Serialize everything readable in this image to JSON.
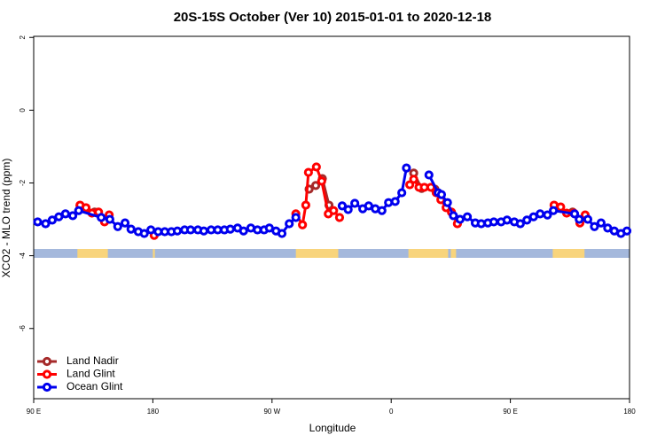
{
  "chart_data": {
    "type": "line",
    "title": "20S-15S October (Ver 10)   2015-01-01 to 2020-12-18",
    "x_label": "Longitude",
    "y_label": "XCO2 - MLO trend (ppm)",
    "xlim": [
      90,
      540
    ],
    "ylim": [
      -7.93,
      2.03
    ],
    "xticks": [
      {
        "value": 90,
        "label": "90 E"
      },
      180,
      {
        "value": 270,
        "label": "90 W"
      },
      {
        "value": 360,
        "label": "0"
      },
      {
        "value": 450,
        "label": "90 E"
      },
      {
        "value": 540,
        "label": "180"
      }
    ],
    "yticks": [
      2,
      0,
      -2,
      -4,
      -6
    ],
    "legend": "bottom-left",
    "land_bands": [
      [
        123,
        146
      ],
      [
        180,
        181.5
      ],
      [
        288,
        320
      ],
      [
        373,
        403
      ],
      [
        405,
        409
      ],
      [
        482,
        506
      ]
    ],
    "land_color": "#f8d47c",
    "ocean_color": "#a4b8dc",
    "series": [
      {
        "name": "Land Nadir",
        "color": "#a52a2a",
        "x": [
          125,
          129.5,
          136,
          143,
          null,
          298,
          303,
          308,
          313,
          null,
          377,
          383,
          393,
          null,
          497
        ],
        "values": [
          -2.63,
          -2.7,
          -2.8,
          -3.0,
          null,
          -2.17,
          -2.07,
          -1.88,
          -2.61,
          null,
          -1.73,
          -2.15,
          -2.17,
          null,
          -2.8
        ]
      },
      {
        "name": "Land Glint",
        "color": "#ff0000",
        "x": [
          125,
          129.5,
          134,
          139,
          143.5,
          147,
          null,
          181,
          null,
          288,
          293,
          295.5,
          297.5,
          303.5,
          307.5,
          312.5,
          316.5,
          321,
          null,
          374,
          377,
          381,
          385,
          390,
          394,
          397.5,
          401.5,
          405.5,
          410,
          null,
          483,
          488,
          492.5,
          498,
          502.5,
          506.5
        ],
        "values": [
          -2.61,
          -2.68,
          -2.83,
          -2.8,
          -3.07,
          -2.88,
          null,
          -3.44,
          null,
          -2.85,
          -3.15,
          -2.61,
          -1.71,
          -1.56,
          -1.95,
          -2.85,
          -2.76,
          -2.95,
          null,
          -2.05,
          -1.9,
          -2.12,
          -2.12,
          -2.12,
          -2.27,
          -2.46,
          -2.68,
          -2.8,
          -3.12,
          null,
          -2.61,
          -2.66,
          -2.83,
          -2.83,
          -3.1,
          -2.88
        ]
      },
      {
        "name": "Ocean Glint",
        "color": "#0000ee",
        "x": [
          93,
          99,
          104,
          109,
          114,
          119.5,
          124,
          141,
          147.5,
          153.5,
          159,
          163.5,
          169,
          173.5,
          178.5,
          184,
          189,
          194,
          198.5,
          204,
          208.5,
          214,
          218.5,
          224,
          229,
          234,
          238.5,
          244,
          248.5,
          254,
          259,
          264,
          268,
          273,
          277.5,
          283,
          288,
          null,
          323,
          327.5,
          332.5,
          338.5,
          343,
          348,
          353,
          358,
          363,
          368,
          371.5,
          null,
          388.5,
          395.5,
          398,
          402.5,
          407,
          412,
          417.5,
          423.5,
          428,
          433,
          437.5,
          443,
          447.5,
          453,
          457.5,
          462.5,
          467.5,
          472.5,
          478,
          482.5,
          498.5,
          502,
          508.5,
          513.5,
          518.5,
          523.5,
          528.5,
          533.5,
          538
        ],
        "values": [
          -3.07,
          -3.12,
          -3.02,
          -2.93,
          -2.85,
          -2.9,
          -2.76,
          -2.95,
          -3.0,
          -3.2,
          -3.1,
          -3.27,
          -3.34,
          -3.39,
          -3.29,
          -3.34,
          -3.34,
          -3.34,
          -3.32,
          -3.29,
          -3.29,
          -3.29,
          -3.32,
          -3.29,
          -3.29,
          -3.29,
          -3.27,
          -3.24,
          -3.32,
          -3.24,
          -3.29,
          -3.29,
          -3.24,
          -3.32,
          -3.39,
          -3.12,
          -2.95,
          null,
          -2.63,
          -2.73,
          -2.56,
          -2.71,
          -2.63,
          -2.71,
          -2.76,
          -2.54,
          -2.51,
          -2.27,
          -1.59,
          null,
          -1.78,
          -2.27,
          -2.32,
          -2.54,
          -2.9,
          -3.0,
          -2.93,
          -3.1,
          -3.12,
          -3.1,
          -3.07,
          -3.07,
          -3.02,
          -3.07,
          -3.12,
          -3.02,
          -2.93,
          -2.85,
          -2.88,
          -2.76,
          -2.85,
          -3.0,
          -3.0,
          -3.2,
          -3.1,
          -3.24,
          -3.32,
          -3.39,
          -3.32
        ]
      }
    ]
  }
}
